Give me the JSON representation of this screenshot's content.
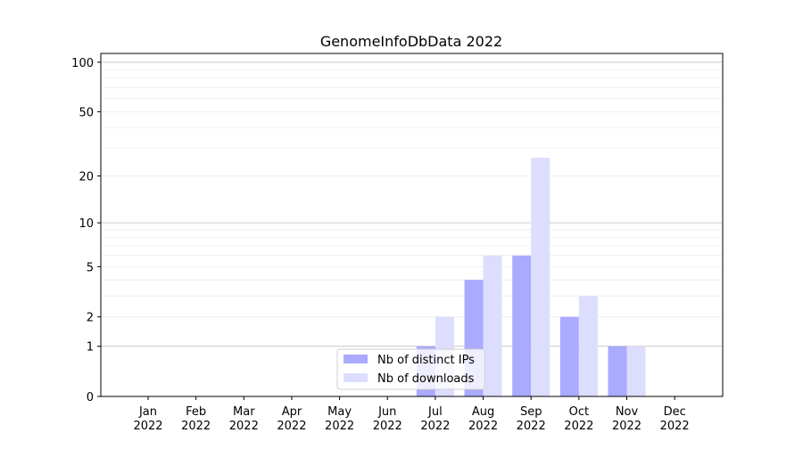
{
  "chart_data": {
    "type": "bar",
    "title": "GenomeInfoDbData 2022",
    "xlabel": "",
    "ylabel": "",
    "scale": "log(1+y)",
    "ylim": [
      0,
      113
    ],
    "yticks": [
      0,
      1,
      2,
      5,
      10,
      20,
      50,
      100
    ],
    "grid": true,
    "legend_position": "lower-center",
    "categories": [
      "Jan\n2022",
      "Feb\n2022",
      "Mar\n2022",
      "Apr\n2022",
      "May\n2022",
      "Jun\n2022",
      "Jul\n2022",
      "Aug\n2022",
      "Sep\n2022",
      "Oct\n2022",
      "Nov\n2022",
      "Dec\n2022"
    ],
    "series": [
      {
        "name": "Nb of distinct IPs",
        "color": "#aaaaff",
        "values": [
          0,
          0,
          0,
          0,
          0,
          0,
          1,
          4,
          6,
          2,
          1,
          0
        ]
      },
      {
        "name": "Nb of downloads",
        "color": "#ddddff",
        "values": [
          0,
          0,
          0,
          0,
          0,
          0,
          2,
          6,
          26,
          3,
          1,
          0
        ]
      }
    ]
  }
}
